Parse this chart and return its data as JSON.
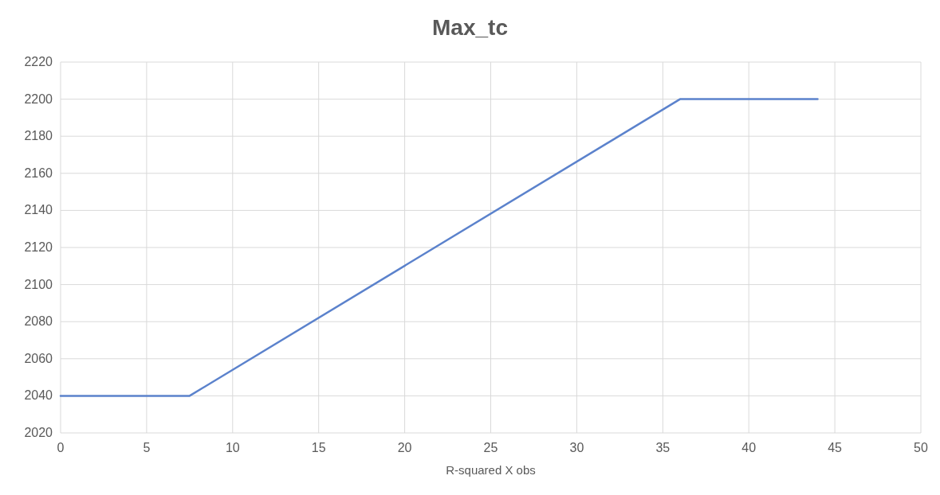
{
  "chart_data": {
    "type": "line",
    "title": "Max_tc",
    "xlabel": "R-squared X obs",
    "x": [
      0,
      7.5,
      36,
      44
    ],
    "series": [
      {
        "color": "#5b82cc",
        "values": [
          2040,
          2040,
          2200,
          2200
        ]
      }
    ],
    "xlim": [
      0,
      50
    ],
    "xticks": [
      0,
      5,
      10,
      15,
      20,
      25,
      30,
      35,
      40,
      45,
      50
    ],
    "ylim": [
      2020,
      2220
    ],
    "yticks": [
      2020,
      2040,
      2060,
      2080,
      2100,
      2120,
      2140,
      2160,
      2180,
      2200,
      2220
    ],
    "grid": true,
    "marker": "none",
    "line_style": "solid"
  }
}
